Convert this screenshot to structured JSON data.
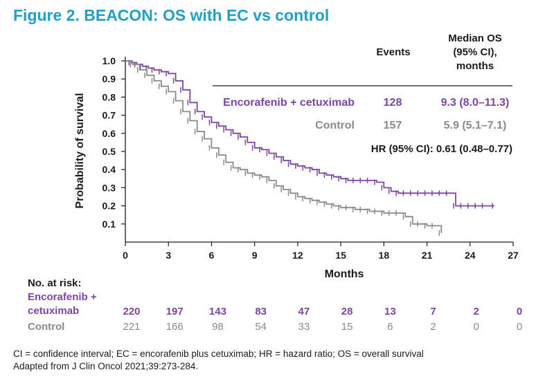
{
  "colors": {
    "title": "#1ea0c8",
    "ec": "#7b45a5",
    "control": "#8a8a8a",
    "text": "#1a1a1a"
  },
  "chart_data": {
    "type": "line",
    "title": "Figure 2. BEACON: OS with EC vs control",
    "xlabel": "Months",
    "ylabel": "Probability of survival",
    "xlim": [
      0,
      27
    ],
    "ylim": [
      0,
      1.0
    ],
    "xticks": [
      "0",
      "3",
      "6",
      "9",
      "12",
      "15",
      "18",
      "21",
      "24",
      "27"
    ],
    "yticks": [
      "0.1",
      "0.2",
      "0.3",
      "0.4",
      "0.5",
      "0.6",
      "0.7",
      "0.8",
      "0.9",
      "1.0"
    ],
    "grid": false,
    "series": [
      {
        "name": "Encorafenib + cetuximab",
        "color": "#7b45a5",
        "x": [
          0,
          0.4,
          0.8,
          1.2,
          1.6,
          2,
          2.5,
          3,
          3.5,
          4,
          4.5,
          5,
          5.5,
          6,
          6.5,
          7,
          7.5,
          8,
          8.5,
          9,
          9.5,
          10,
          10.5,
          11,
          11.5,
          12,
          12.5,
          13,
          13.5,
          14,
          14.5,
          15,
          15.5,
          16,
          16.5,
          17,
          17.5,
          18,
          18.5,
          19,
          19.5,
          20,
          20.5,
          21,
          21.5,
          22,
          22.5,
          23,
          23.5,
          24,
          24.5,
          25,
          25.7
        ],
        "y": [
          1.0,
          0.99,
          0.98,
          0.97,
          0.96,
          0.95,
          0.94,
          0.93,
          0.89,
          0.84,
          0.77,
          0.72,
          0.69,
          0.66,
          0.64,
          0.62,
          0.6,
          0.58,
          0.55,
          0.52,
          0.51,
          0.49,
          0.47,
          0.45,
          0.43,
          0.42,
          0.41,
          0.4,
          0.38,
          0.37,
          0.36,
          0.35,
          0.34,
          0.34,
          0.34,
          0.34,
          0.33,
          0.3,
          0.28,
          0.27,
          0.27,
          0.27,
          0.27,
          0.27,
          0.27,
          0.27,
          0.27,
          0.2,
          0.2,
          0.2,
          0.2,
          0.2,
          0.2
        ]
      },
      {
        "name": "Control",
        "color": "#8a8a8a",
        "x": [
          0,
          0.5,
          1,
          1.5,
          2,
          2.5,
          3,
          3.5,
          4,
          4.5,
          5,
          5.5,
          6,
          6.5,
          7,
          7.5,
          8,
          8.5,
          9,
          9.5,
          10,
          10.5,
          11,
          11.5,
          12,
          12.5,
          13,
          13.5,
          14,
          14.5,
          15,
          15.5,
          16,
          16.5,
          17,
          17.5,
          18,
          18.5,
          19,
          19.5,
          20,
          20.5,
          21,
          21.5,
          22
        ],
        "y": [
          1.0,
          0.98,
          0.95,
          0.92,
          0.89,
          0.86,
          0.83,
          0.78,
          0.72,
          0.67,
          0.61,
          0.57,
          0.52,
          0.48,
          0.44,
          0.41,
          0.4,
          0.38,
          0.37,
          0.36,
          0.34,
          0.31,
          0.29,
          0.27,
          0.25,
          0.24,
          0.23,
          0.22,
          0.21,
          0.2,
          0.19,
          0.19,
          0.18,
          0.18,
          0.17,
          0.17,
          0.16,
          0.16,
          0.16,
          0.14,
          0.1,
          0.1,
          0.09,
          0.09,
          0.05
        ]
      }
    ],
    "table": {
      "headers": {
        "events": "Events",
        "median_line1": "Median OS",
        "median_line2": "(95% CI),",
        "median_line3": "months"
      },
      "rows": [
        {
          "label": "Encorafenib + cetuximab",
          "events": "128",
          "median": "9.3 (8.0–11.3)"
        },
        {
          "label": "Control",
          "events": "157",
          "median": "5.9 (5.1–7.1)"
        }
      ],
      "hr": "HR (95% CI): 0.61 (0.48–0.77)"
    },
    "at_risk": {
      "heading": "No. at risk:",
      "rows": [
        {
          "label_line1": "Encorafenib +",
          "label_line2": "cetuximab",
          "values": [
            "220",
            "197",
            "143",
            "83",
            "47",
            "28",
            "13",
            "7",
            "2",
            "0"
          ]
        },
        {
          "label_line1": "Control",
          "values": [
            "221",
            "166",
            "98",
            "54",
            "33",
            "15",
            "6",
            "2",
            "0",
            "0"
          ]
        }
      ]
    }
  },
  "footnotes": {
    "line1": "CI = confidence interval; EC = encorafenib plus cetuximab; HR = hazard ratio; OS = overall survival",
    "line2": "Adapted from J Clin Oncol 2021;39:273-284."
  }
}
